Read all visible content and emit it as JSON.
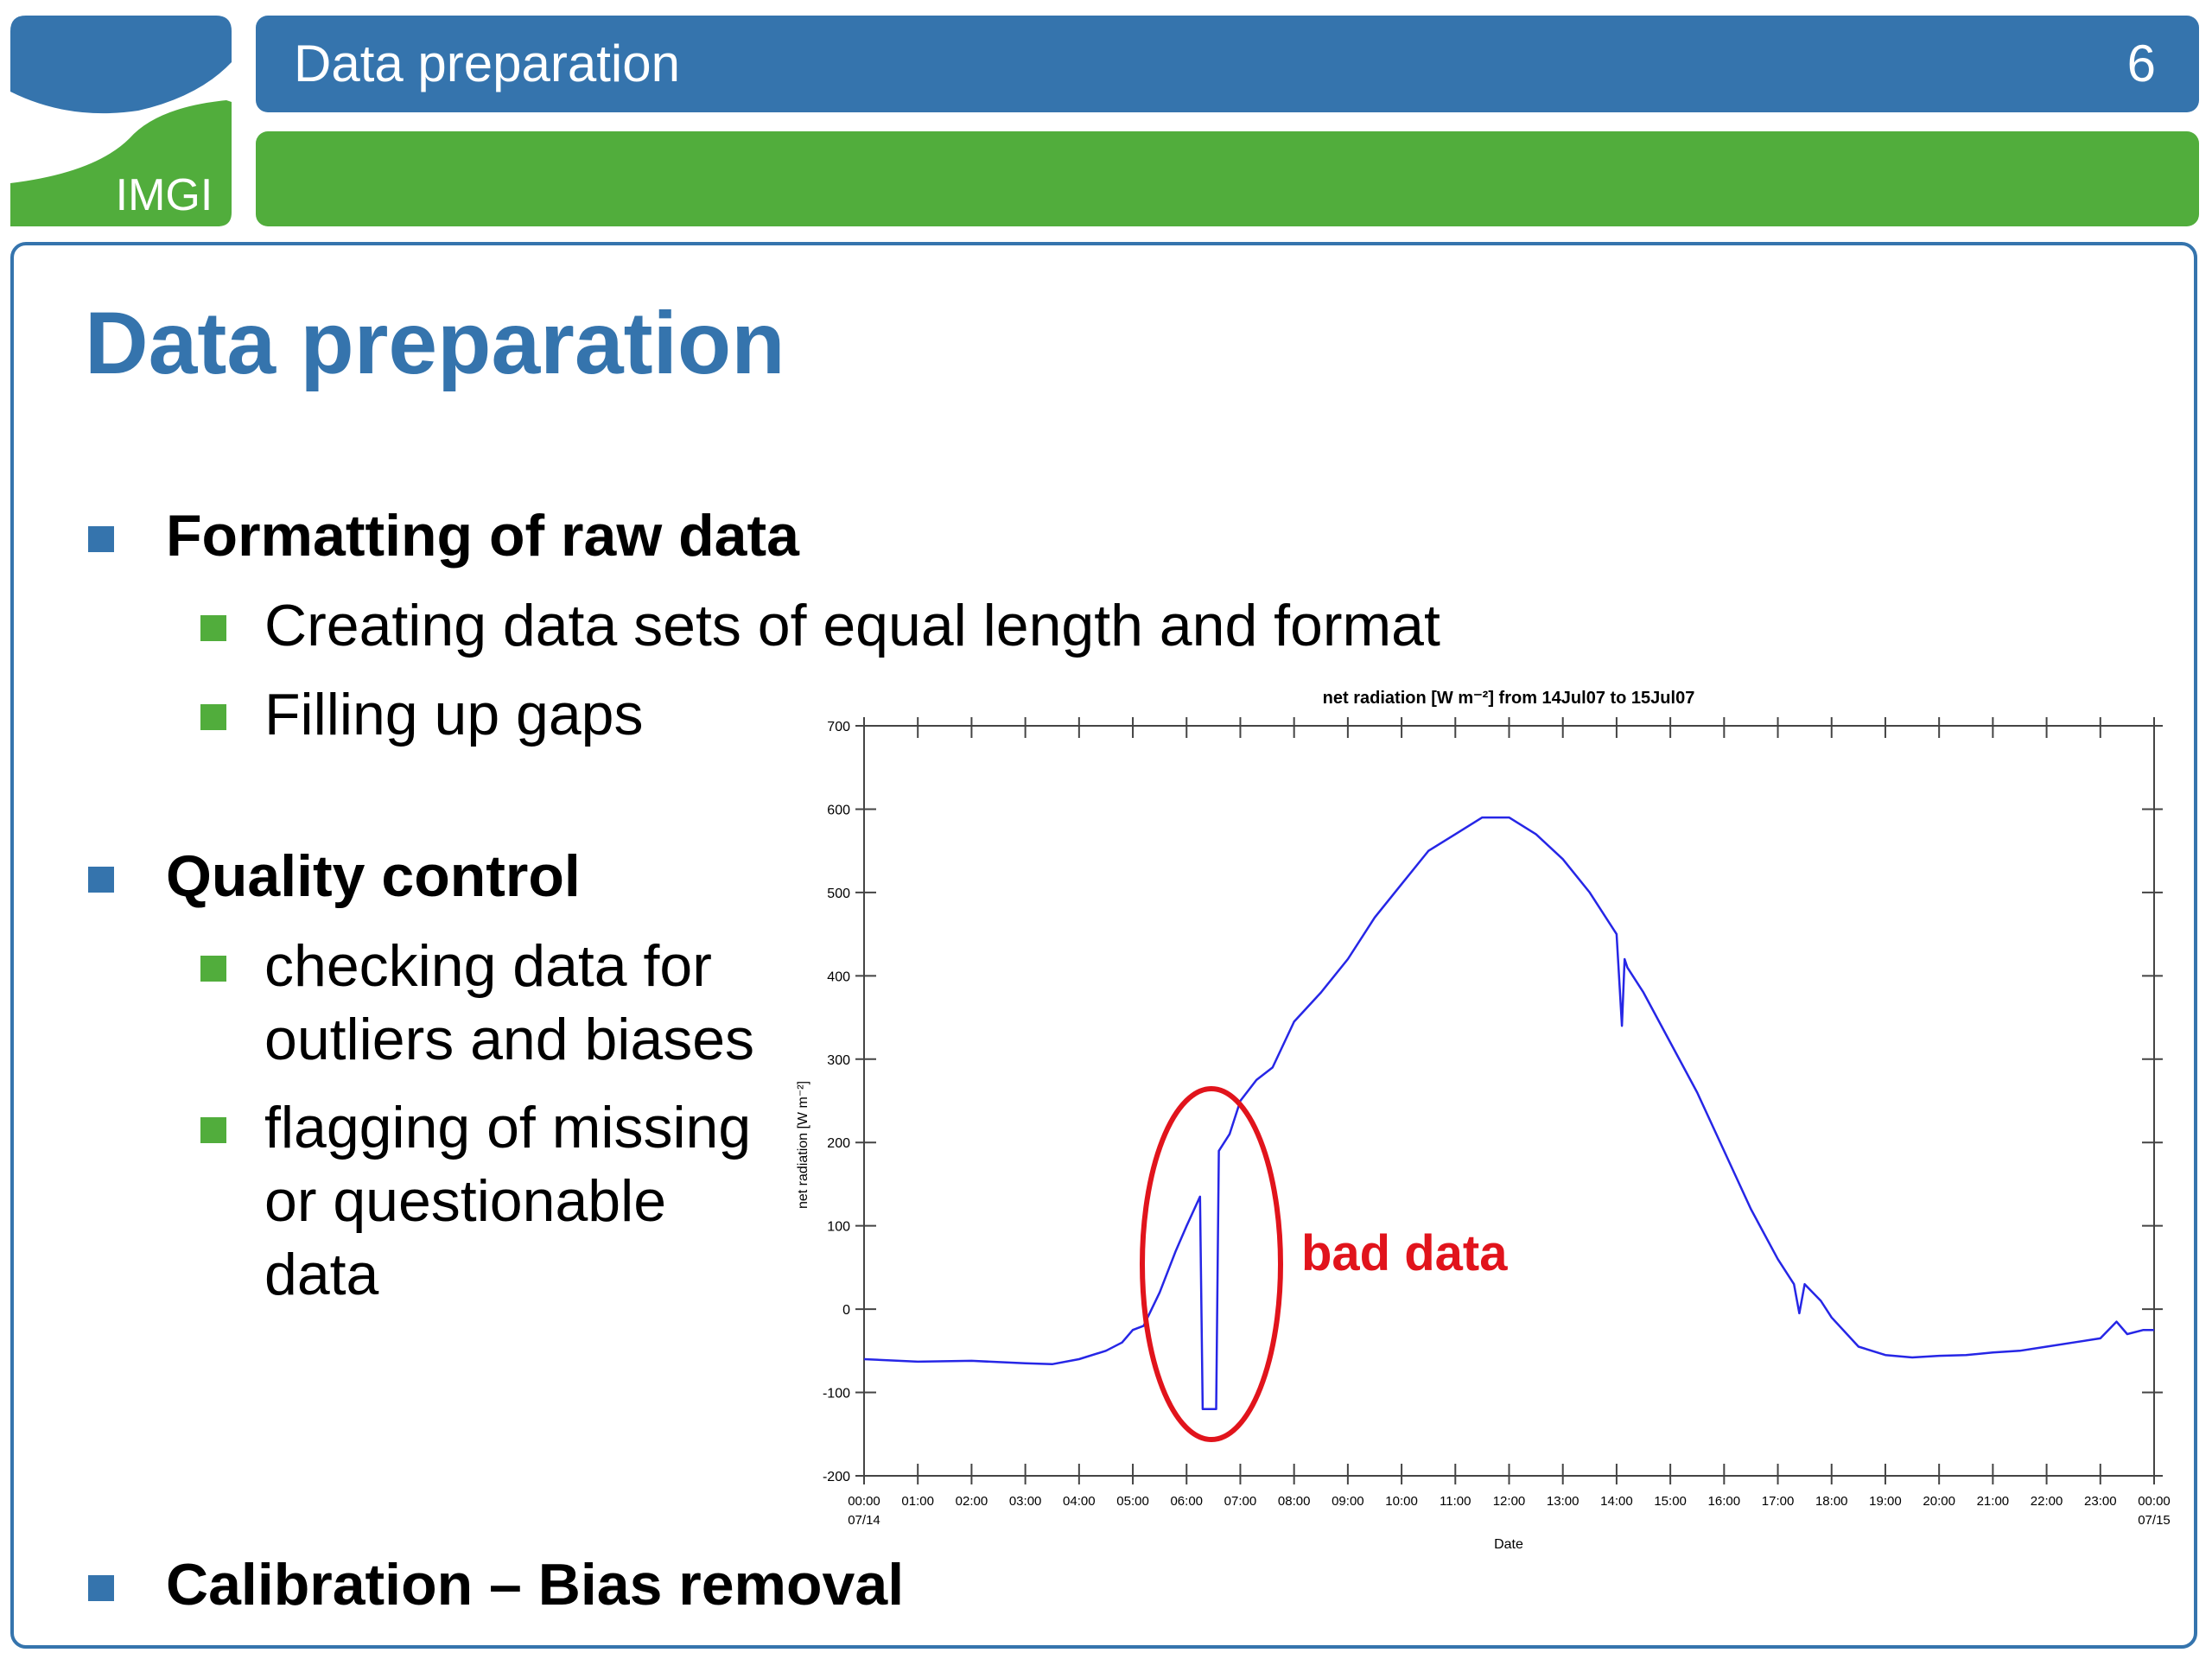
{
  "logo": {
    "text": "IMGI",
    "colors": {
      "blue": "#3574ad",
      "green": "#51ad3c"
    }
  },
  "header": {
    "title": "Data preparation",
    "page_number": "6"
  },
  "slide": {
    "title": "Data preparation",
    "sections": [
      {
        "heading": "Formatting of raw data",
        "items": [
          "Creating data sets of equal length and format",
          "Filling up gaps"
        ]
      },
      {
        "heading": "Quality control",
        "items": [
          [
            "checking data for",
            "outliers and biases"
          ],
          [
            "flagging of missing",
            "or questionable",
            "data"
          ]
        ]
      },
      {
        "heading": "Calibration – Bias removal",
        "items": []
      }
    ]
  },
  "chart_data": {
    "type": "line",
    "title": "net radiation [W m⁻²] from 14Jul07 to 15Jul07",
    "ylabel": "net radiation [W m⁻²]",
    "xlabel": "Date",
    "ylim": [
      -200,
      700
    ],
    "xlim": [
      0,
      24
    ],
    "yticks": [
      "700",
      "600",
      "500",
      "400",
      "300",
      "200",
      "100",
      "0",
      "-100",
      "-200"
    ],
    "xticks": [
      "00:00",
      "01:00",
      "02:00",
      "03:00",
      "04:00",
      "05:00",
      "06:00",
      "07:00",
      "08:00",
      "09:00",
      "10:00",
      "11:00",
      "12:00",
      "13:00",
      "14:00",
      "15:00",
      "16:00",
      "17:00",
      "18:00",
      "19:00",
      "20:00",
      "21:00",
      "22:00",
      "23:00",
      "00:00"
    ],
    "xdates": {
      "start": "07/14",
      "end": "07/15"
    },
    "line_color": "#2626e6",
    "annotation": {
      "text": "bad data",
      "color": "#e1141c"
    },
    "series": [
      {
        "x": [
          0.0,
          1.0,
          2.0,
          3.0,
          3.5,
          4.0,
          4.5,
          4.8,
          5.0,
          5.2,
          5.5,
          5.8,
          6.0,
          6.25,
          6.3,
          6.55,
          6.6,
          6.8,
          7.0,
          7.3,
          7.6,
          8.0,
          8.5,
          9.0,
          9.5,
          10.0,
          10.5,
          11.0,
          11.5,
          12.0,
          12.5,
          13.0,
          13.5,
          14.0,
          14.1,
          14.15,
          14.2,
          14.5,
          15.0,
          15.5,
          16.0,
          16.5,
          17.0,
          17.3,
          17.4,
          17.5,
          17.8,
          18.0,
          18.5,
          19.0,
          19.5,
          20.0,
          20.5,
          21.0,
          21.5,
          22.0,
          22.5,
          23.0,
          23.3,
          23.5,
          23.8,
          24.0
        ],
        "y": [
          -60,
          -63,
          -62,
          -65,
          -66,
          -60,
          -50,
          -40,
          -25,
          -20,
          20,
          70,
          100,
          135,
          -120,
          -120,
          190,
          210,
          250,
          275,
          290,
          345,
          380,
          420,
          470,
          510,
          550,
          570,
          590,
          590,
          570,
          540,
          500,
          450,
          340,
          420,
          410,
          380,
          320,
          260,
          190,
          120,
          60,
          30,
          -5,
          30,
          10,
          -10,
          -45,
          -55,
          -58,
          -56,
          -55,
          -52,
          -50,
          -45,
          -40,
          -35,
          -15,
          -30,
          -25,
          -25
        ]
      }
    ]
  }
}
